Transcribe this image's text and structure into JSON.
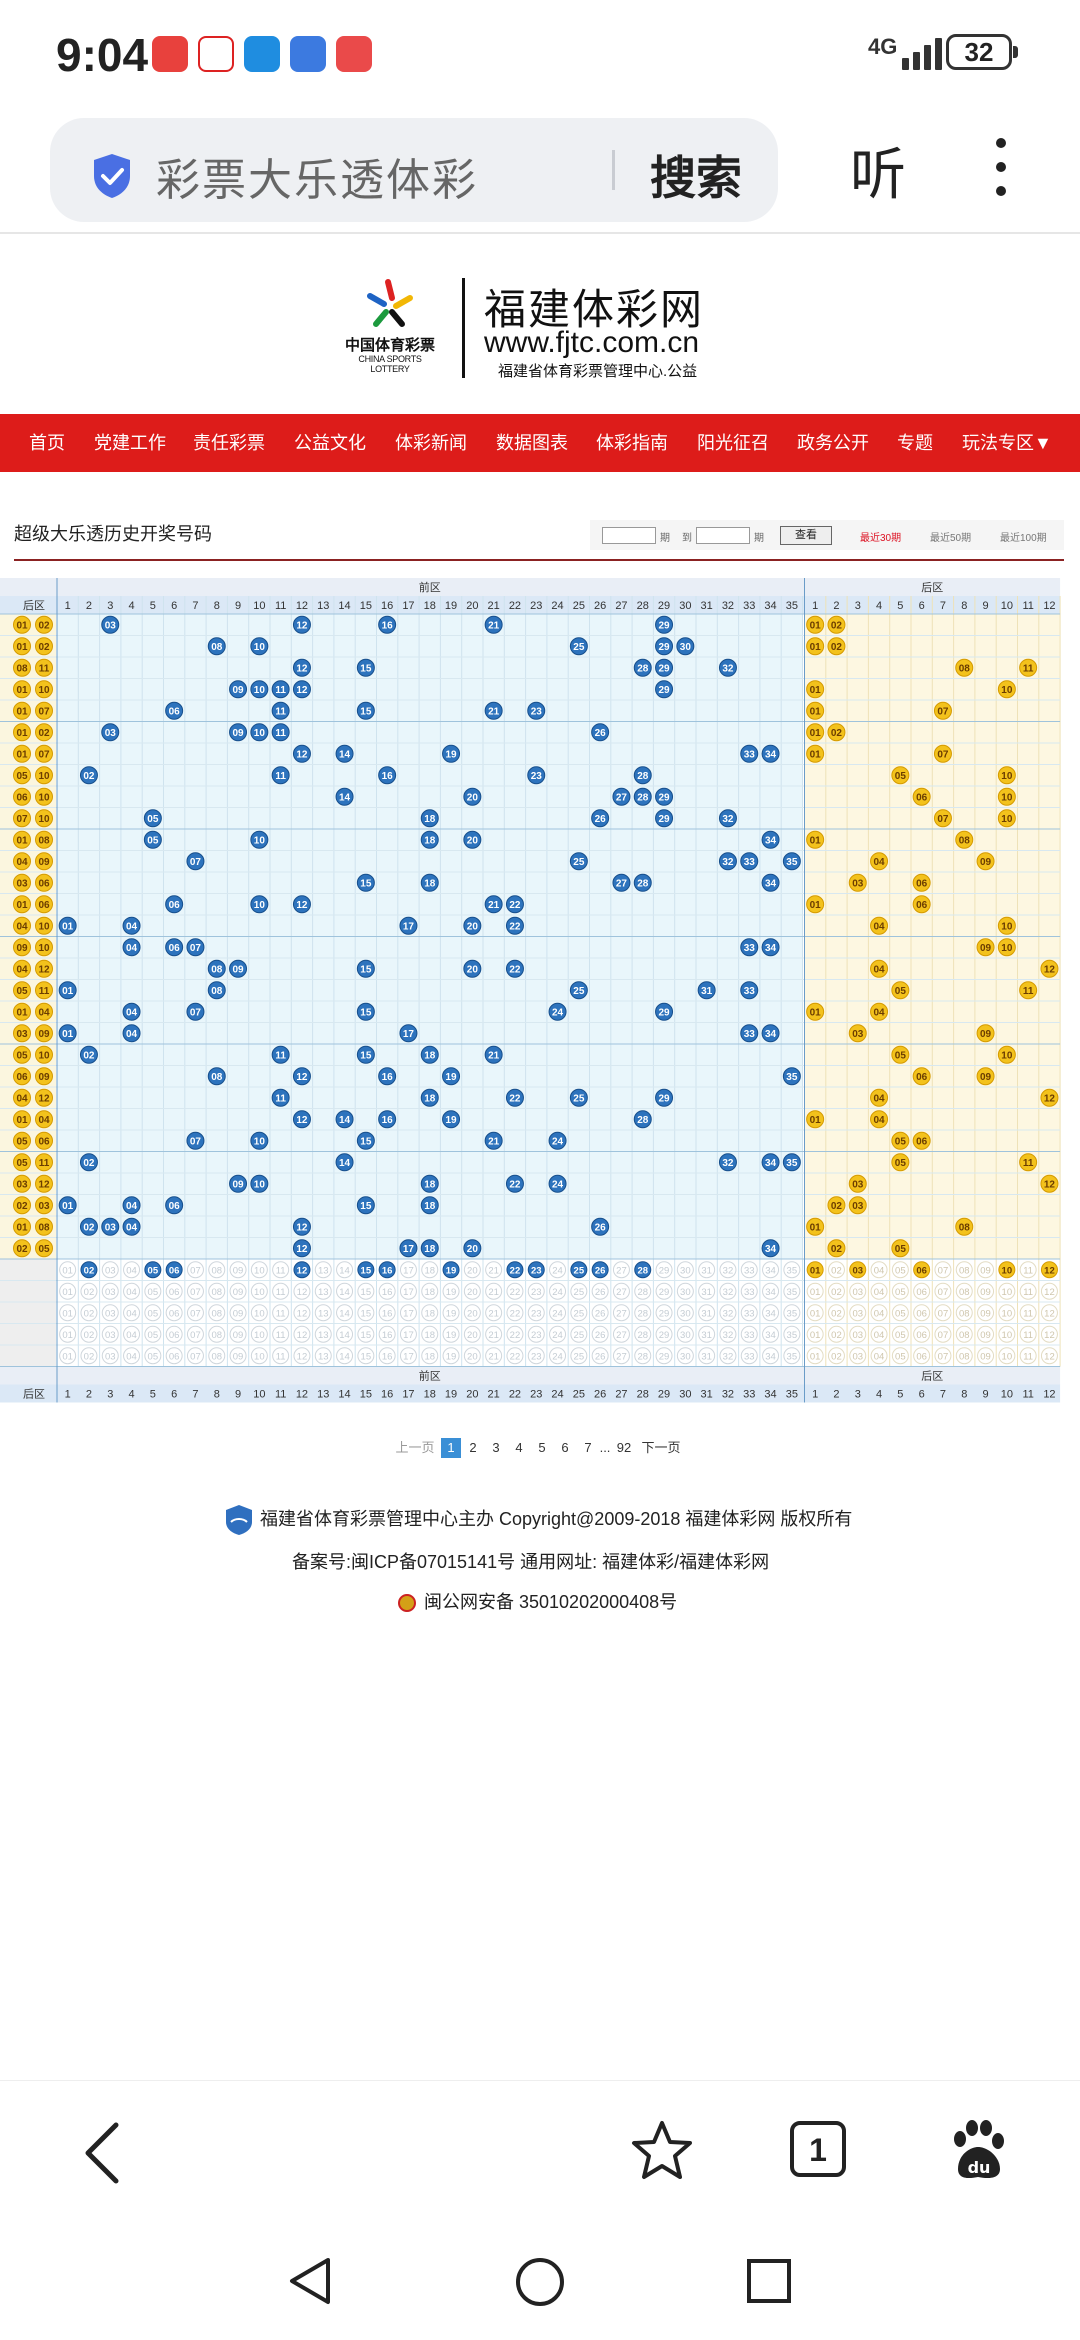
{
  "status": {
    "time": "9:04",
    "network": "4G",
    "battery": "32"
  },
  "browser": {
    "search_text": "彩票大乐透体彩",
    "search_button": "搜索",
    "listen_button": "听"
  },
  "logo": {
    "cn_name": "中国体育彩票",
    "en_name": "CHINA SPORTS LOTTERY",
    "title": "福建体彩网",
    "url": "www.fjtc.com.cn",
    "subtitle": "福建省体育彩票管理中心.公益"
  },
  "nav": {
    "items": [
      "首页",
      "党建工作",
      "责任彩票",
      "公益文化",
      "体彩新闻",
      "数据图表",
      "体彩指南",
      "阳光征召",
      "政务公开",
      "专题",
      "玩法专区▼"
    ]
  },
  "page": {
    "title": "超级大乐透历史开奖号码",
    "filter": {
      "from_label": "期",
      "to_label": "到",
      "to_suffix": "期",
      "query": "查看"
    },
    "ranges": [
      "最近30期",
      "最近50期",
      "最近100期"
    ]
  },
  "chart_data": {
    "type": "table",
    "front_zone_label": "前区",
    "back_zone_label": "后区",
    "left_header": "后区",
    "front_numbers": 35,
    "back_numbers": 12,
    "draws": [
      {
        "back": [
          "01",
          "02"
        ],
        "front": [
          3,
          12,
          16,
          21,
          29
        ]
      },
      {
        "back": [
          "01",
          "02"
        ],
        "front": [
          8,
          10,
          25,
          29,
          30
        ]
      },
      {
        "back": [
          "08",
          "11"
        ],
        "front": [
          12,
          15,
          28,
          29,
          32
        ]
      },
      {
        "back": [
          "01",
          "10"
        ],
        "front": [
          9,
          10,
          11,
          12,
          29
        ]
      },
      {
        "back": [
          "01",
          "07"
        ],
        "front": [
          6,
          11,
          15,
          21,
          23
        ]
      },
      {
        "back": [
          "01",
          "02"
        ],
        "front": [
          3,
          9,
          10,
          11,
          26
        ]
      },
      {
        "back": [
          "01",
          "07"
        ],
        "front": [
          12,
          14,
          19,
          33,
          34
        ]
      },
      {
        "back": [
          "05",
          "10"
        ],
        "front": [
          2,
          11,
          16,
          23,
          28
        ]
      },
      {
        "back": [
          "06",
          "10"
        ],
        "front": [
          14,
          20,
          27,
          28,
          29
        ]
      },
      {
        "back": [
          "07",
          "10"
        ],
        "front": [
          5,
          18,
          26,
          29,
          32
        ]
      },
      {
        "back": [
          "01",
          "08"
        ],
        "front": [
          5,
          10,
          18,
          20,
          34
        ]
      },
      {
        "back": [
          "04",
          "09"
        ],
        "front": [
          7,
          25,
          32,
          33,
          35
        ]
      },
      {
        "back": [
          "03",
          "06"
        ],
        "front": [
          15,
          18,
          27,
          28,
          34
        ]
      },
      {
        "back": [
          "01",
          "06"
        ],
        "front": [
          6,
          10,
          12,
          21,
          22
        ]
      },
      {
        "back": [
          "04",
          "10"
        ],
        "front": [
          1,
          4,
          17,
          20,
          22
        ]
      },
      {
        "back": [
          "09",
          "10"
        ],
        "front": [
          4,
          6,
          7,
          33,
          34
        ]
      },
      {
        "back": [
          "04",
          "12"
        ],
        "front": [
          8,
          9,
          15,
          20,
          22
        ]
      },
      {
        "back": [
          "05",
          "11"
        ],
        "front": [
          1,
          8,
          25,
          31,
          33
        ]
      },
      {
        "back": [
          "01",
          "04"
        ],
        "front": [
          4,
          7,
          15,
          24,
          29
        ]
      },
      {
        "back": [
          "03",
          "09"
        ],
        "front": [
          1,
          4,
          17,
          33,
          34
        ]
      },
      {
        "back": [
          "05",
          "10"
        ],
        "front": [
          2,
          11,
          15,
          18,
          21
        ]
      },
      {
        "back": [
          "06",
          "09"
        ],
        "front": [
          8,
          12,
          16,
          19,
          35
        ]
      },
      {
        "back": [
          "04",
          "12"
        ],
        "front": [
          11,
          18,
          22,
          25,
          29
        ]
      },
      {
        "back": [
          "01",
          "04"
        ],
        "front": [
          12,
          14,
          16,
          19,
          28
        ]
      },
      {
        "back": [
          "05",
          "06"
        ],
        "front": [
          7,
          10,
          15,
          21,
          24
        ]
      },
      {
        "back": [
          "05",
          "11"
        ],
        "front": [
          2,
          14,
          32,
          34,
          35
        ]
      },
      {
        "back": [
          "03",
          "12"
        ],
        "front": [
          9,
          10,
          18,
          22,
          24
        ]
      },
      {
        "back": [
          "02",
          "03"
        ],
        "front": [
          1,
          4,
          6,
          15,
          18
        ]
      },
      {
        "back": [
          "01",
          "08"
        ],
        "front": [
          2,
          3,
          4,
          12,
          26
        ]
      },
      {
        "back": [
          "02",
          "05"
        ],
        "front": [
          12,
          17,
          18,
          20,
          34
        ]
      }
    ],
    "stats_front_highlight": [
      2,
      5,
      6,
      12,
      15,
      16,
      19,
      22,
      23,
      25,
      26,
      28
    ],
    "stats_back_highlight": [
      1,
      3,
      6,
      10,
      12
    ]
  },
  "pagination": {
    "prev": "上一页",
    "pages": [
      "1",
      "2",
      "3",
      "4",
      "5",
      "6",
      "7"
    ],
    "ellipsis": "...",
    "last": "92",
    "next": "下一页"
  },
  "footer": {
    "line1": "福建省体育彩票管理中心主办 Copyright@2009-2018 福建体彩网 版权所有",
    "line2": "备案号:闽ICP备07015141号    通用网址:  福建体彩/福建体彩网",
    "line3": "闽公网安备 35010202000408号"
  },
  "bottom": {
    "tab_count": "1"
  }
}
